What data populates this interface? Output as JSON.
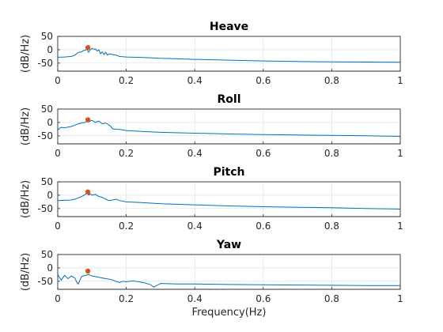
{
  "chart_data": [
    {
      "type": "line",
      "title": "Heave",
      "ylabel": "(dB/Hz)",
      "xlabel": "",
      "xlim": [
        0,
        1
      ],
      "ylim": [
        -80,
        50
      ],
      "xticks": [
        0,
        0.2,
        0.4,
        0.6,
        0.8,
        1
      ],
      "xtick_labels": [
        "0",
        "0.2",
        "0.4",
        "0.6",
        "0.8",
        "1"
      ],
      "yticks": [
        50,
        0,
        -50
      ],
      "ytick_labels": [
        "50",
        "0",
        "-50"
      ],
      "grid": true,
      "series": [
        {
          "color": "#0072bd",
          "x": [
            0,
            0.02,
            0.04,
            0.05,
            0.06,
            0.07,
            0.075,
            0.08,
            0.085,
            0.09,
            0.095,
            0.1,
            0.105,
            0.11,
            0.115,
            0.12,
            0.125,
            0.13,
            0.135,
            0.14,
            0.145,
            0.15,
            0.16,
            0.17,
            0.18,
            0.2,
            0.25,
            0.3,
            0.35,
            0.4,
            0.5,
            0.6,
            0.7,
            0.8,
            0.9,
            1.0
          ],
          "y": [
            -28,
            -27,
            -25,
            -20,
            -10,
            -8,
            -3,
            -2,
            2,
            -10,
            0,
            5,
            2,
            3,
            -5,
            0,
            -15,
            -8,
            -18,
            -10,
            -20,
            -15,
            -18,
            -20,
            -25,
            -27,
            -29,
            -32,
            -34,
            -36,
            -39,
            -42,
            -44,
            -45,
            -46,
            -47
          ]
        }
      ],
      "peak": {
        "x": 0.088,
        "y": 8,
        "color": "#d95319"
      }
    },
    {
      "type": "line",
      "title": "Roll",
      "ylabel": "(dB/Hz)",
      "xlabel": "",
      "xlim": [
        0,
        1
      ],
      "ylim": [
        -80,
        50
      ],
      "xticks": [
        0,
        0.2,
        0.4,
        0.6,
        0.8,
        1
      ],
      "xtick_labels": [
        "0",
        "0.2",
        "0.4",
        "0.6",
        "0.8",
        "1"
      ],
      "yticks": [
        50,
        0,
        -50
      ],
      "ytick_labels": [
        "50",
        "0",
        "-50"
      ],
      "grid": true,
      "series": [
        {
          "color": "#0072bd",
          "x": [
            0,
            0.01,
            0.02,
            0.03,
            0.04,
            0.05,
            0.06,
            0.07,
            0.08,
            0.085,
            0.09,
            0.1,
            0.11,
            0.12,
            0.13,
            0.14,
            0.15,
            0.155,
            0.16,
            0.18,
            0.2,
            0.25,
            0.3,
            0.4,
            0.5,
            0.6,
            0.7,
            0.8,
            0.9,
            1.0
          ],
          "y": [
            -28,
            -18,
            -20,
            -17,
            -15,
            -10,
            -5,
            -2,
            0,
            5,
            2,
            8,
            0,
            5,
            -5,
            -2,
            -10,
            -15,
            -24,
            -26,
            -30,
            -34,
            -37,
            -40,
            -43,
            -45,
            -47,
            -48,
            -50,
            -52
          ]
        }
      ],
      "peak": {
        "x": 0.088,
        "y": 10,
        "color": "#d95319"
      }
    },
    {
      "type": "line",
      "title": "Pitch",
      "ylabel": "(dB/Hz)",
      "xlabel": "",
      "xlim": [
        0,
        1
      ],
      "ylim": [
        -80,
        50
      ],
      "xticks": [
        0,
        0.2,
        0.4,
        0.6,
        0.8,
        1
      ],
      "xtick_labels": [
        "0",
        "0.2",
        "0.4",
        "0.6",
        "0.8",
        "1"
      ],
      "yticks": [
        50,
        0,
        -50
      ],
      "ytick_labels": [
        "50",
        "0",
        "-50"
      ],
      "grid": true,
      "series": [
        {
          "color": "#0072bd",
          "x": [
            0,
            0.02,
            0.04,
            0.05,
            0.06,
            0.07,
            0.08,
            0.085,
            0.09,
            0.095,
            0.1,
            0.11,
            0.12,
            0.13,
            0.14,
            0.15,
            0.16,
            0.17,
            0.18,
            0.2,
            0.25,
            0.3,
            0.4,
            0.5,
            0.6,
            0.7,
            0.8,
            0.9,
            1.0
          ],
          "y": [
            -20,
            -19,
            -18,
            -15,
            -10,
            -5,
            2,
            10,
            0,
            5,
            0,
            3,
            -5,
            -8,
            -15,
            -20,
            -18,
            -15,
            -20,
            -25,
            -28,
            -32,
            -36,
            -40,
            -43,
            -45,
            -47,
            -50,
            -52
          ]
        }
      ],
      "peak": {
        "x": 0.088,
        "y": 12,
        "color": "#d95319"
      }
    },
    {
      "type": "line",
      "title": "Yaw",
      "ylabel": "(dB/Hz)",
      "xlabel": "Frequency(Hz)",
      "xlim": [
        0,
        1
      ],
      "ylim": [
        -80,
        50
      ],
      "xticks": [
        0,
        0.2,
        0.4,
        0.6,
        0.8,
        1
      ],
      "xtick_labels": [
        "0",
        "0.2",
        "0.4",
        "0.6",
        "0.8",
        "1"
      ],
      "yticks": [
        50,
        0,
        -50
      ],
      "ytick_labels": [
        "50",
        "0",
        "-50"
      ],
      "grid": true,
      "series": [
        {
          "color": "#0072bd",
          "x": [
            0,
            0.01,
            0.02,
            0.03,
            0.04,
            0.05,
            0.055,
            0.06,
            0.065,
            0.07,
            0.08,
            0.09,
            0.1,
            0.12,
            0.14,
            0.15,
            0.16,
            0.17,
            0.18,
            0.19,
            0.2,
            0.22,
            0.25,
            0.27,
            0.28,
            0.3,
            0.35,
            0.4,
            0.5,
            0.6,
            0.7,
            0.8,
            0.9,
            1.0
          ],
          "y": [
            -25,
            -45,
            -28,
            -40,
            -30,
            -38,
            -52,
            -60,
            -45,
            -32,
            -28,
            -25,
            -30,
            -35,
            -40,
            -42,
            -45,
            -50,
            -55,
            -50,
            -52,
            -48,
            -55,
            -62,
            -72,
            -58,
            -60,
            -60,
            -62,
            -63,
            -64,
            -65,
            -66,
            -66
          ]
        }
      ],
      "peak": {
        "x": 0.088,
        "y": -12,
        "color": "#d95319"
      }
    }
  ]
}
